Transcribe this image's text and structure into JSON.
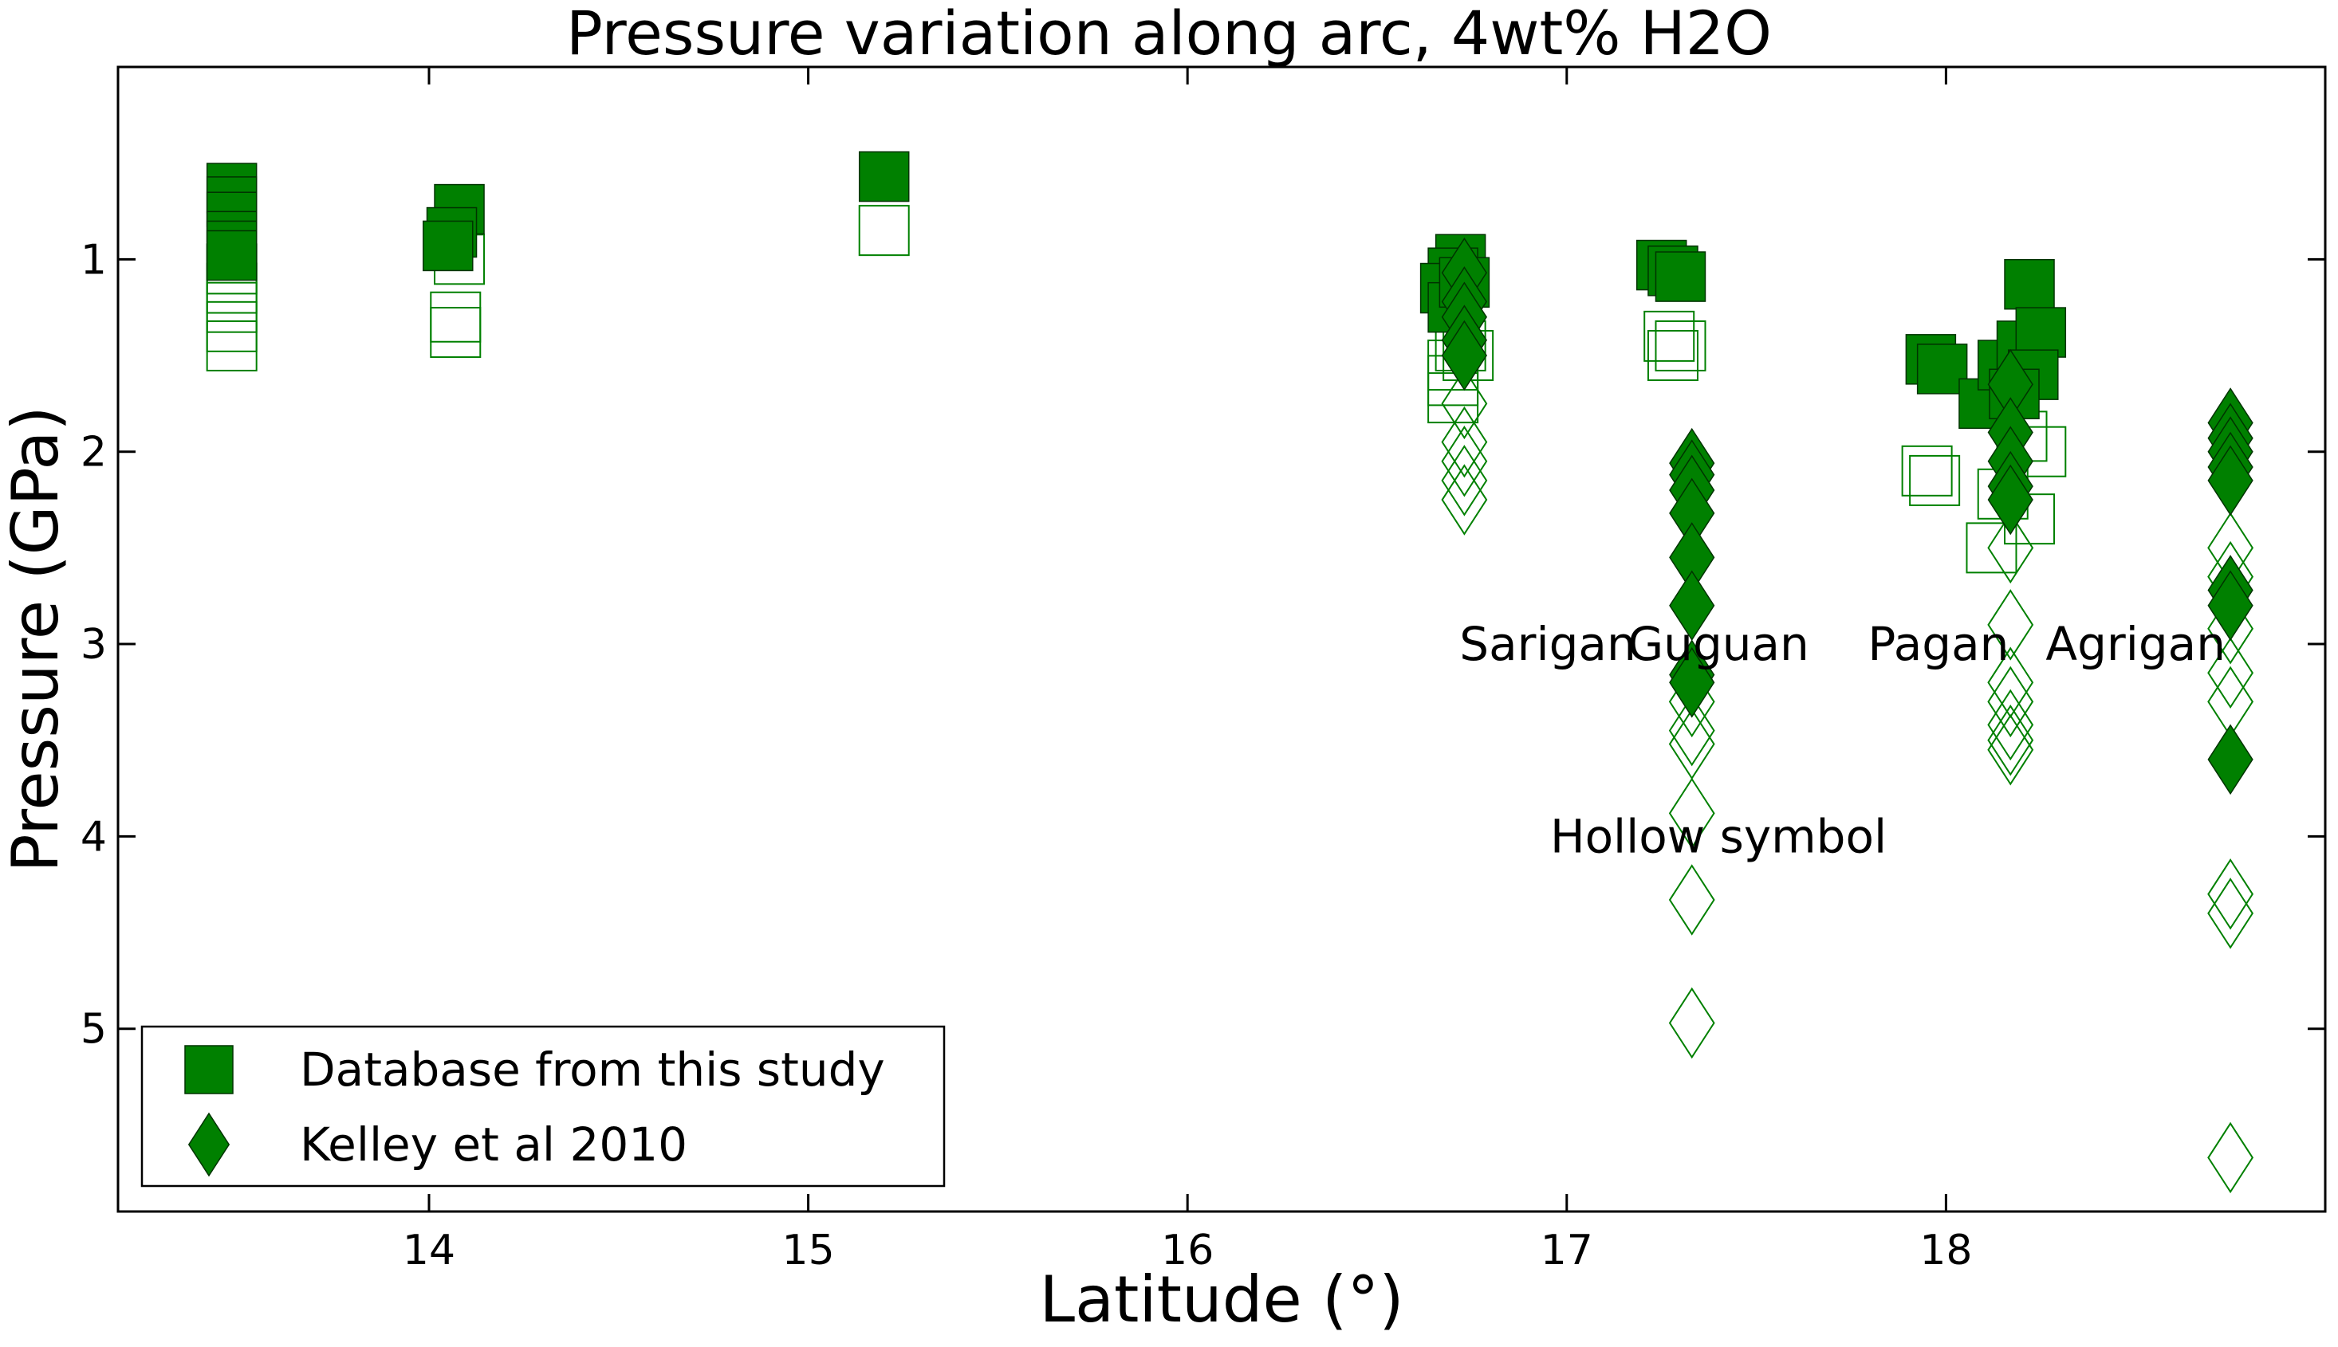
{
  "chart_data": {
    "type": "scatter",
    "title": "Pressure variation along arc, 4wt% H2O",
    "xlabel": "Latitude (°)",
    "ylabel": "Pressure (GPa)",
    "xlim": [
      13.18,
      19.0
    ],
    "ylim": [
      5.95,
      0.0
    ],
    "y_inverted": true,
    "xticks": [
      14,
      15,
      16,
      17,
      18
    ],
    "xtick_labels": [
      "14",
      "15",
      "16",
      "17",
      "18"
    ],
    "yticks": [
      1,
      2,
      3,
      4,
      5
    ],
    "ytick_labels": [
      "1",
      "2",
      "3",
      "4",
      "5"
    ],
    "grid": false,
    "legend_position": "bottom-left",
    "color": "#008000",
    "annotations": [
      {
        "text": "Sarigan",
        "x": 16.95,
        "y": 3.0
      },
      {
        "text": "Guguan",
        "x": 17.4,
        "y": 3.0
      },
      {
        "text": "Pagan",
        "x": 17.98,
        "y": 3.0
      },
      {
        "text": "Agrigan",
        "x": 18.5,
        "y": 3.0
      },
      {
        "text": "Hollow symbol",
        "x": 17.4,
        "y": 4.0
      }
    ],
    "legend": [
      {
        "label": "Database from this study",
        "marker": "square"
      },
      {
        "label": "Kelley et al 2010",
        "marker": "diamond"
      }
    ],
    "series": [
      {
        "name": "Database from this study",
        "marker": "square",
        "fill": "filled",
        "points": [
          [
            13.48,
            0.63
          ],
          [
            13.48,
            0.7
          ],
          [
            13.48,
            0.78
          ],
          [
            13.48,
            0.88
          ],
          [
            13.48,
            0.93
          ],
          [
            13.48,
            0.98
          ],
          [
            14.08,
            0.74
          ],
          [
            14.06,
            0.86
          ],
          [
            14.05,
            0.93
          ],
          [
            15.2,
            0.57
          ],
          [
            16.72,
            1.0
          ],
          [
            16.7,
            1.07
          ],
          [
            16.68,
            1.15
          ],
          [
            16.7,
            1.25
          ],
          [
            16.73,
            1.12
          ],
          [
            17.25,
            1.03
          ],
          [
            17.28,
            1.06
          ],
          [
            17.3,
            1.09
          ],
          [
            17.96,
            1.52
          ],
          [
            17.99,
            1.57
          ],
          [
            18.1,
            1.75
          ],
          [
            18.15,
            1.55
          ],
          [
            18.2,
            1.45
          ],
          [
            18.22,
            1.13
          ],
          [
            18.25,
            1.38
          ],
          [
            18.23,
            1.6
          ],
          [
            18.18,
            1.7
          ]
        ]
      },
      {
        "name": "Kelley et al 2010",
        "marker": "diamond",
        "fill": "filled",
        "points": [
          [
            16.73,
            1.07
          ],
          [
            16.73,
            1.22
          ],
          [
            16.73,
            1.3
          ],
          [
            16.73,
            1.42
          ],
          [
            16.73,
            1.5
          ],
          [
            17.33,
            2.06
          ],
          [
            17.33,
            2.12
          ],
          [
            17.33,
            2.2
          ],
          [
            17.33,
            2.32
          ],
          [
            17.33,
            2.55
          ],
          [
            17.33,
            2.8
          ],
          [
            17.33,
            3.16
          ],
          [
            17.33,
            3.2
          ],
          [
            18.17,
            1.65
          ],
          [
            18.17,
            1.9
          ],
          [
            18.17,
            2.05
          ],
          [
            18.17,
            2.18
          ],
          [
            18.17,
            2.25
          ],
          [
            18.75,
            1.85
          ],
          [
            18.75,
            1.93
          ],
          [
            18.75,
            2.0
          ],
          [
            18.75,
            2.08
          ],
          [
            18.75,
            2.15
          ],
          [
            18.75,
            2.72
          ],
          [
            18.75,
            2.8
          ],
          [
            18.75,
            3.6
          ]
        ]
      },
      {
        "name": "",
        "marker": "square",
        "fill": "hollow",
        "points": [
          [
            13.48,
            1.05
          ],
          [
            13.48,
            1.15
          ],
          [
            13.48,
            1.25
          ],
          [
            13.48,
            1.35
          ],
          [
            13.48,
            1.45
          ],
          [
            14.08,
            1.0
          ],
          [
            14.07,
            1.3
          ],
          [
            14.07,
            1.38
          ],
          [
            15.2,
            0.85
          ],
          [
            16.7,
            1.55
          ],
          [
            16.7,
            1.63
          ],
          [
            16.7,
            1.72
          ],
          [
            16.72,
            1.45
          ],
          [
            16.74,
            1.5
          ],
          [
            17.27,
            1.4
          ],
          [
            17.3,
            1.45
          ],
          [
            17.28,
            1.5
          ],
          [
            17.95,
            2.1
          ],
          [
            17.97,
            2.15
          ],
          [
            18.12,
            2.5
          ],
          [
            18.15,
            2.22
          ],
          [
            18.2,
            1.92
          ],
          [
            18.25,
            2.0
          ],
          [
            18.22,
            2.35
          ]
        ]
      },
      {
        "name": "",
        "marker": "diamond",
        "fill": "hollow",
        "points": [
          [
            16.73,
            1.75
          ],
          [
            16.73,
            1.95
          ],
          [
            16.73,
            2.05
          ],
          [
            16.73,
            2.15
          ],
          [
            16.73,
            2.25
          ],
          [
            17.33,
            3.3
          ],
          [
            17.33,
            3.45
          ],
          [
            17.33,
            3.52
          ],
          [
            17.33,
            3.88
          ],
          [
            17.33,
            4.33
          ],
          [
            17.33,
            4.97
          ],
          [
            18.17,
            2.5
          ],
          [
            18.17,
            2.9
          ],
          [
            18.17,
            3.2
          ],
          [
            18.17,
            3.3
          ],
          [
            18.17,
            3.42
          ],
          [
            18.17,
            3.5
          ],
          [
            18.17,
            3.55
          ],
          [
            18.75,
            2.5
          ],
          [
            18.75,
            2.65
          ],
          [
            18.75,
            2.92
          ],
          [
            18.75,
            3.15
          ],
          [
            18.75,
            3.3
          ],
          [
            18.75,
            4.3
          ],
          [
            18.75,
            4.4
          ],
          [
            18.75,
            5.67
          ]
        ]
      }
    ]
  }
}
